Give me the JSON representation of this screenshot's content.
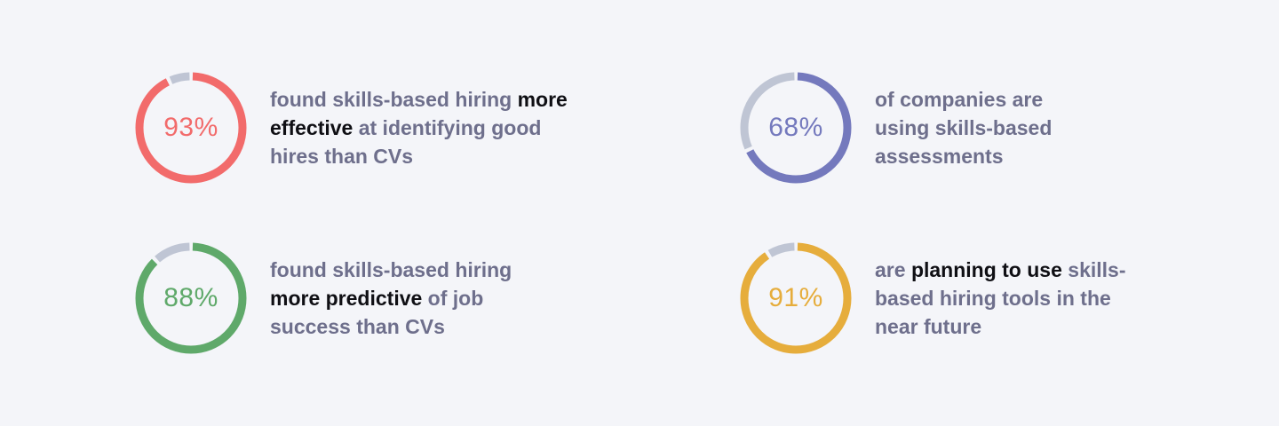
{
  "stats": [
    {
      "value": 93,
      "label": "93%",
      "color": "#f26b6b",
      "text_before": "found skills-based hiring ",
      "text_strong": "more effective",
      "text_after": " at identifying good hires than CVs"
    },
    {
      "value": 68,
      "label": "68%",
      "color": "#7479bd",
      "text_before": "of companies are using skills-based assessments",
      "text_strong": "",
      "text_after": ""
    },
    {
      "value": 88,
      "label": "88%",
      "color": "#5fa96a",
      "text_before": "found skills-based hiring ",
      "text_strong": "more predictive",
      "text_after": " of job success than CVs"
    },
    {
      "value": 91,
      "label": "91%",
      "color": "#e6ad3c",
      "text_before": "are ",
      "text_strong": "planning to use",
      "text_after": " skills-based hiring tools in the near future"
    }
  ],
  "remainder_color": "#bfc5d4",
  "background_color": "#f4f5f9",
  "chart_data": {
    "type": "pie",
    "variant": "donut-set",
    "title": "",
    "items": [
      {
        "label": "found skills-based hiring more effective at identifying good hires than CVs",
        "value": 93,
        "unit": "%"
      },
      {
        "label": "of companies are using skills-based assessments",
        "value": 68,
        "unit": "%"
      },
      {
        "label": "found skills-based hiring more predictive of job success than CVs",
        "value": 88,
        "unit": "%"
      },
      {
        "label": "are planning to use skills-based hiring tools in the near future",
        "value": 91,
        "unit": "%"
      }
    ]
  }
}
